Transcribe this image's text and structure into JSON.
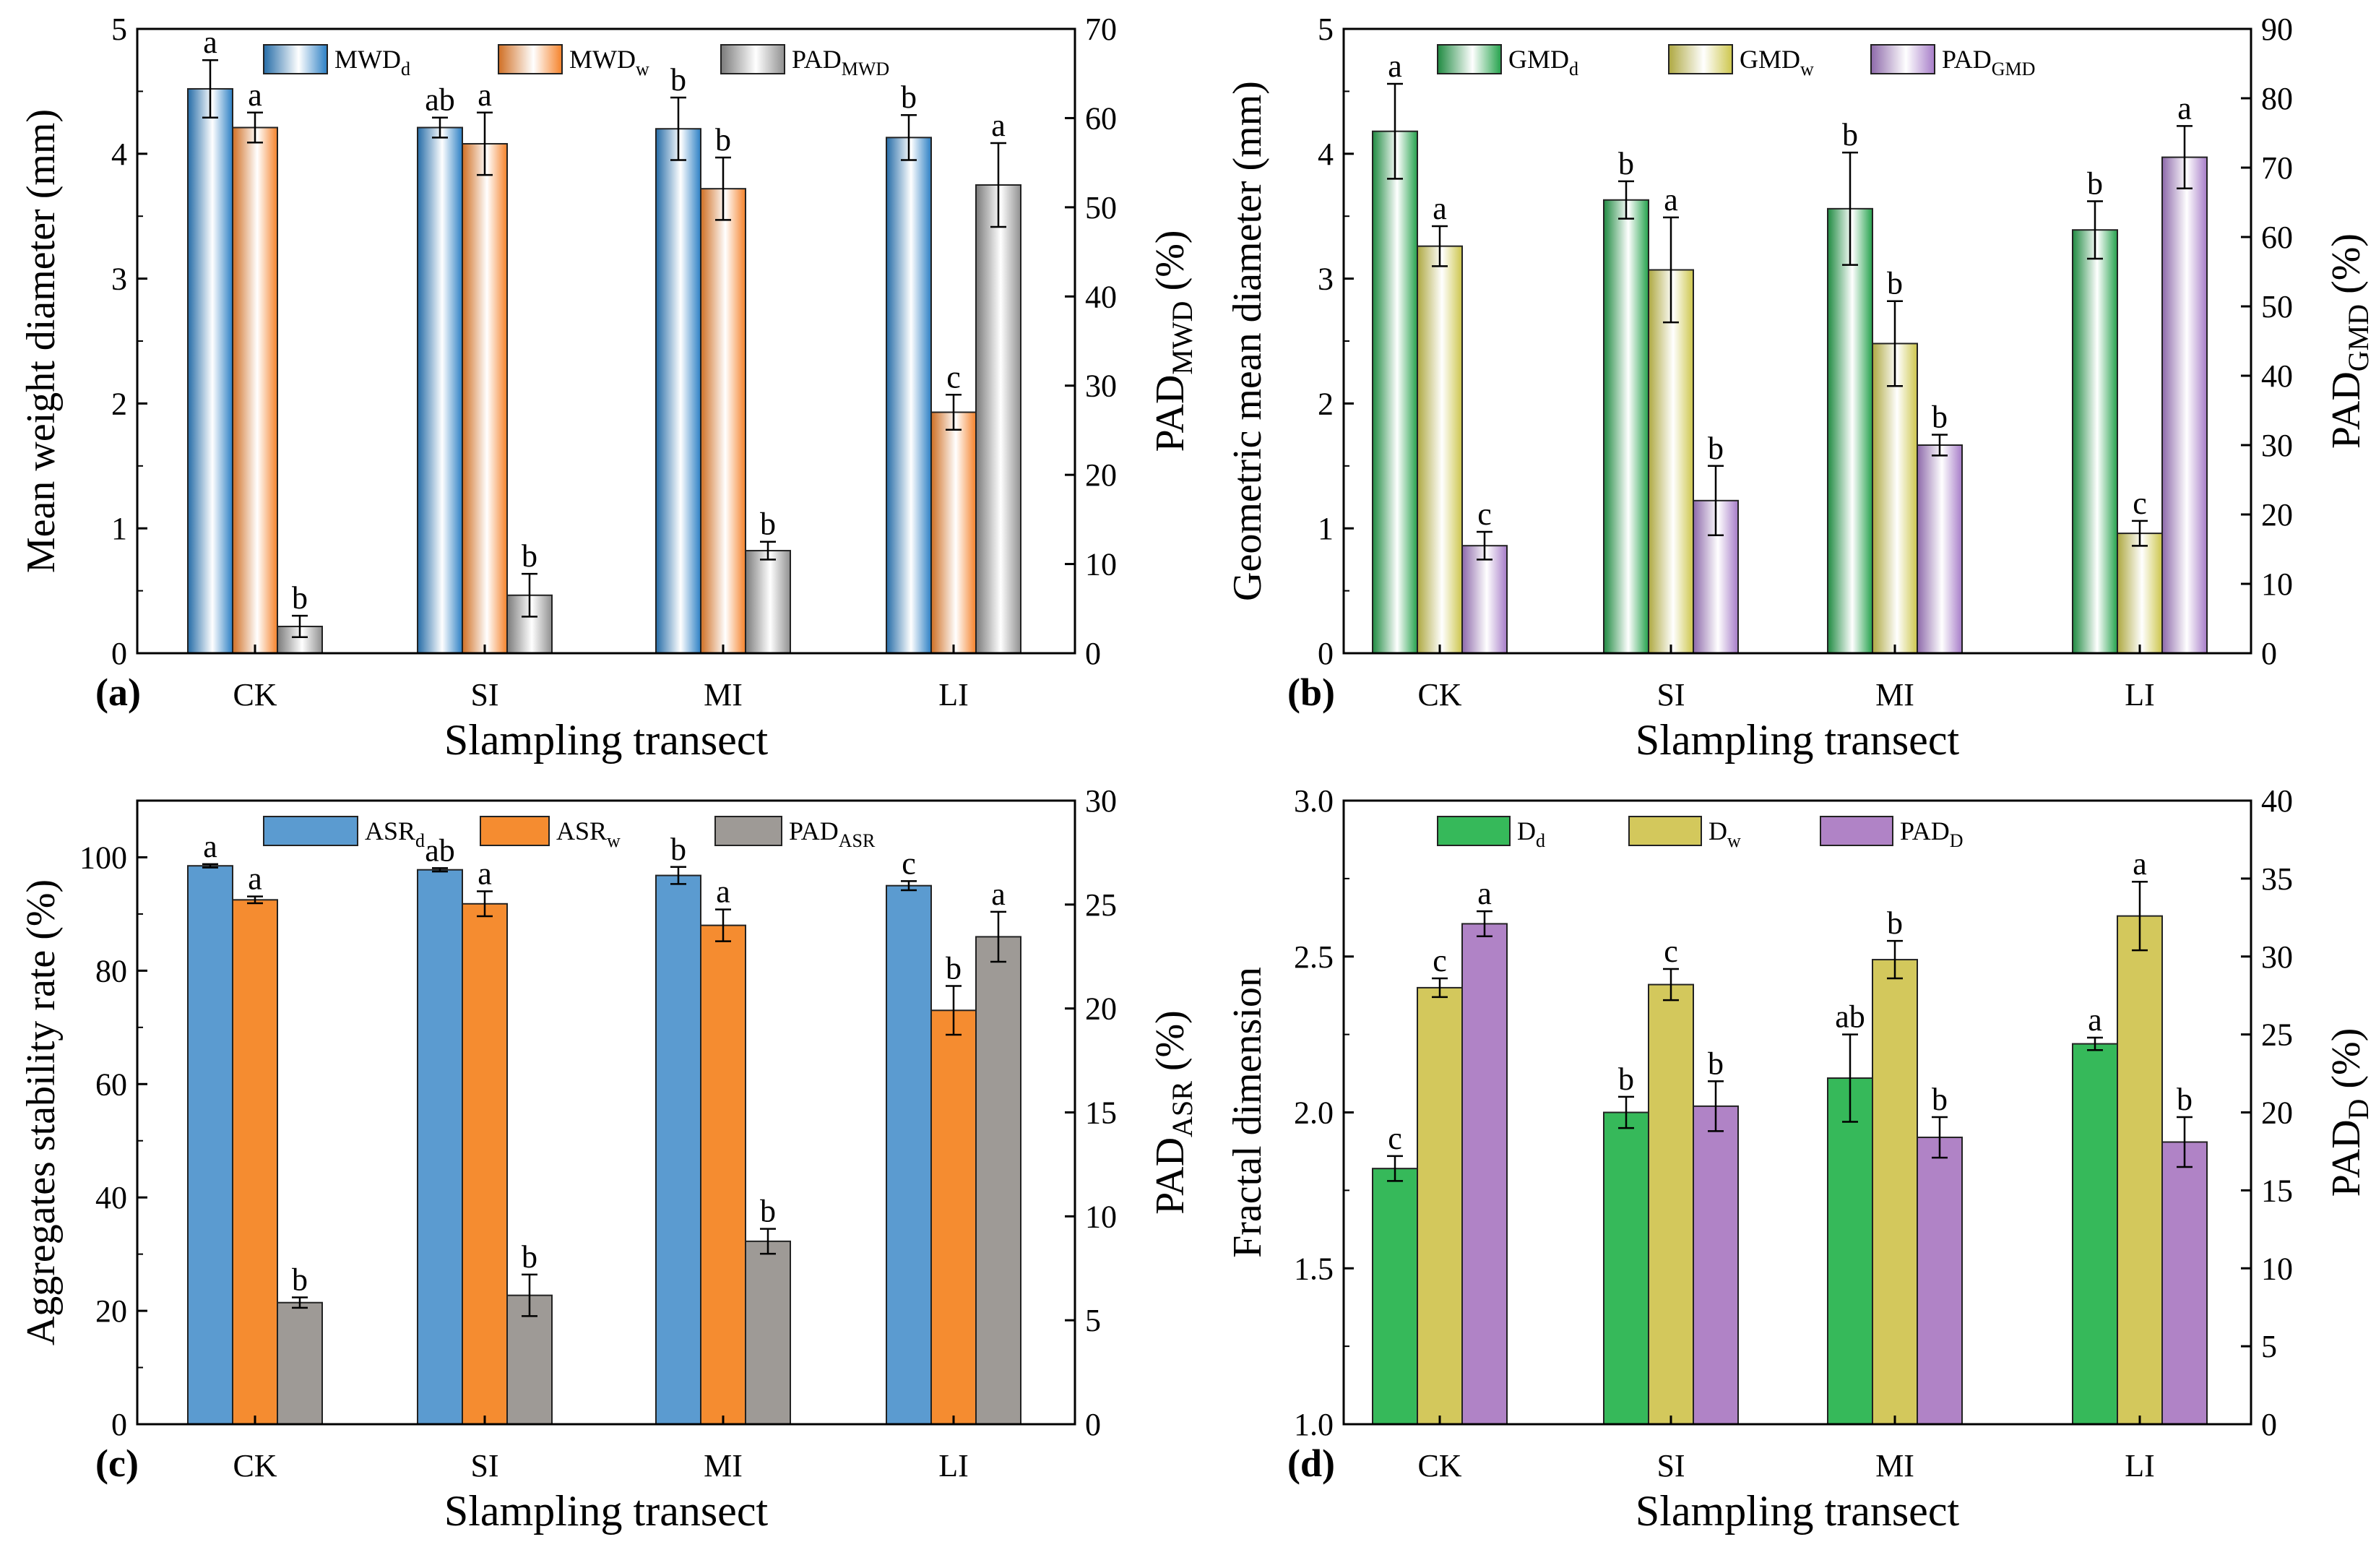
{
  "figure": {
    "panels": [
      "a",
      "b",
      "c",
      "d"
    ]
  },
  "chart_data": [
    {
      "panel": "a",
      "panel_label": "(a)",
      "type": "bar",
      "bar_style": "gradient",
      "categories": [
        "CK",
        "SI",
        "MI",
        "LI"
      ],
      "xlabel": "Slampling transect",
      "ylabel": "Mean weight diameter (mm)",
      "ylim": [
        0,
        5
      ],
      "yticks": [
        0,
        1,
        2,
        3,
        4,
        5
      ],
      "y2label": {
        "base": "PAD",
        "sub": "MWD",
        "suffix": " (%)"
      },
      "y2lim": [
        0,
        70
      ],
      "y2ticks": [
        0,
        10,
        20,
        30,
        40,
        50,
        60,
        70
      ],
      "series": [
        {
          "name": "MWDd",
          "legend_base": "MWD",
          "legend_sub": "d",
          "axis": "left",
          "color": "#2b7fc4",
          "values": [
            4.52,
            4.21,
            4.2,
            4.13
          ],
          "errors": [
            0.23,
            0.08,
            0.25,
            0.18
          ],
          "letters": [
            "a",
            "ab",
            "b",
            "b"
          ]
        },
        {
          "name": "MWDw",
          "legend_base": "MWD",
          "legend_sub": "w",
          "axis": "left",
          "color": "#f5822a",
          "values": [
            4.21,
            4.08,
            3.72,
            1.93
          ],
          "errors": [
            0.12,
            0.25,
            0.25,
            0.14
          ],
          "letters": [
            "a",
            "a",
            "b",
            "c"
          ]
        },
        {
          "name": "PADMWD",
          "legend_base": "PAD",
          "legend_sub": "MWD",
          "axis": "right",
          "color": "#8f8f8f",
          "values": [
            3.0,
            6.5,
            11.5,
            52.5
          ],
          "errors": [
            1.2,
            2.4,
            1.0,
            4.7
          ],
          "letters": [
            "b",
            "b",
            "b",
            "a"
          ]
        }
      ]
    },
    {
      "panel": "b",
      "panel_label": "(b)",
      "type": "bar",
      "bar_style": "gradient",
      "categories": [
        "CK",
        "SI",
        "MI",
        "LI"
      ],
      "xlabel": "Slampling transect",
      "ylabel": "Geometric mean diameter (mm)",
      "ylim": [
        0,
        5
      ],
      "yticks": [
        0,
        1,
        2,
        3,
        4,
        5
      ],
      "y2label": {
        "base": "PAD",
        "sub": "GMD",
        "suffix": " (%)"
      },
      "y2lim": [
        0,
        90
      ],
      "y2ticks": [
        0,
        10,
        20,
        30,
        40,
        50,
        60,
        70,
        80,
        90
      ],
      "series": [
        {
          "name": "GMDd",
          "legend_base": "GMD",
          "legend_sub": "d",
          "axis": "left",
          "color": "#24a24c",
          "values": [
            4.18,
            3.63,
            3.56,
            3.39
          ],
          "errors": [
            0.38,
            0.15,
            0.45,
            0.23
          ],
          "letters": [
            "a",
            "b",
            "b",
            "b"
          ]
        },
        {
          "name": "GMDw",
          "legend_base": "GMD",
          "legend_sub": "w",
          "axis": "left",
          "color": "#cdc64c",
          "values": [
            3.26,
            3.07,
            2.48,
            0.96
          ],
          "errors": [
            0.16,
            0.42,
            0.34,
            0.1
          ],
          "letters": [
            "a",
            "a",
            "b",
            "c"
          ]
        },
        {
          "name": "PADGMD",
          "legend_base": "PAD",
          "legend_sub": "GMD",
          "axis": "right",
          "color": "#a67cc8",
          "values": [
            15.5,
            22.0,
            30.0,
            71.5
          ],
          "errors": [
            2.0,
            5.0,
            1.5,
            4.5
          ],
          "letters": [
            "c",
            "b",
            "b",
            "a"
          ]
        }
      ]
    },
    {
      "panel": "c",
      "panel_label": "(c)",
      "type": "bar",
      "bar_style": "flat",
      "categories": [
        "CK",
        "SI",
        "MI",
        "LI"
      ],
      "xlabel": "Slampling transect",
      "ylabel": "Aggregates stability rate (%)",
      "ylim": [
        0,
        110
      ],
      "yticks": [
        0,
        20,
        40,
        60,
        80,
        100
      ],
      "y2label": {
        "base": "PAD",
        "sub": "ASR",
        "suffix": " (%)"
      },
      "y2lim": [
        0,
        30
      ],
      "y2ticks": [
        0,
        5,
        10,
        15,
        20,
        25,
        30
      ],
      "series": [
        {
          "name": "ASRd",
          "legend_base": "ASR",
          "legend_sub": "d",
          "axis": "left",
          "color": "#5b9bd0",
          "values": [
            98.5,
            97.8,
            96.8,
            95.0
          ],
          "errors": [
            0.3,
            0.3,
            1.5,
            0.8
          ],
          "letters": [
            "a",
            "ab",
            "b",
            "c"
          ]
        },
        {
          "name": "ASRw",
          "legend_base": "ASR",
          "legend_sub": "w",
          "axis": "left",
          "color": "#f58c30",
          "values": [
            92.5,
            91.8,
            88.0,
            73.0
          ],
          "errors": [
            0.6,
            2.2,
            2.8,
            4.3
          ],
          "letters": [
            "a",
            "a",
            "a",
            "b"
          ]
        },
        {
          "name": "PADASR",
          "legend_base": "PAD",
          "legend_sub": "ASR",
          "axis": "right",
          "color": "#9e9a96",
          "values": [
            5.85,
            6.2,
            8.8,
            23.45
          ],
          "errors": [
            0.25,
            1.0,
            0.6,
            1.2
          ],
          "letters": [
            "b",
            "b",
            "b",
            "a"
          ]
        }
      ]
    },
    {
      "panel": "d",
      "panel_label": "(d)",
      "type": "bar",
      "bar_style": "flat",
      "categories": [
        "CK",
        "SI",
        "MI",
        "LI"
      ],
      "xlabel": "Slampling transect",
      "ylabel": "Fractal dimension",
      "ylim": [
        1.0,
        3.0
      ],
      "yticks": [
        1.0,
        1.5,
        2.0,
        2.5,
        3.0
      ],
      "tick_decimals": 1,
      "y2label": {
        "base": "PAD",
        "sub": "D",
        "suffix": " (%)"
      },
      "y2lim": [
        0,
        40
      ],
      "y2ticks": [
        0,
        5,
        10,
        15,
        20,
        25,
        30,
        35,
        40
      ],
      "series": [
        {
          "name": "Dd",
          "legend_base": "D",
          "legend_sub": "d",
          "axis": "left",
          "color": "#36b95a",
          "values": [
            1.82,
            2.0,
            2.11,
            2.22
          ],
          "errors": [
            0.04,
            0.05,
            0.14,
            0.02
          ],
          "letters": [
            "c",
            "b",
            "ab",
            "a"
          ]
        },
        {
          "name": "Dw",
          "legend_base": "D",
          "legend_sub": "w",
          "axis": "left",
          "color": "#d3c85c",
          "values": [
            2.4,
            2.41,
            2.49,
            2.63
          ],
          "errors": [
            0.03,
            0.05,
            0.06,
            0.11
          ],
          "letters": [
            "c",
            "c",
            "b",
            "a"
          ]
        },
        {
          "name": "PADD",
          "legend_base": "PAD",
          "legend_sub": "D",
          "axis": "right",
          "color": "#b083c6",
          "values": [
            32.1,
            20.4,
            18.4,
            18.1
          ],
          "errors": [
            0.8,
            1.6,
            1.3,
            1.6
          ],
          "letters": [
            "a",
            "b",
            "b",
            "b"
          ]
        }
      ]
    }
  ]
}
